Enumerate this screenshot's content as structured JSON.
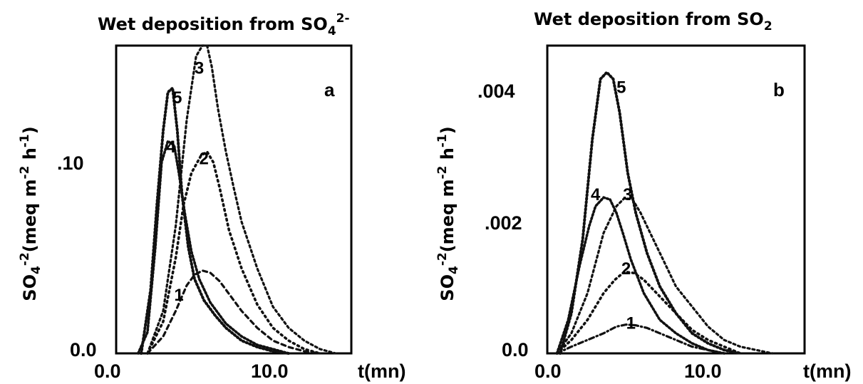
{
  "chart_data": [
    {
      "type": "line",
      "panel_label": "a",
      "title": "Wet deposition from SO",
      "title_sub": "4",
      "title_sup": "2-",
      "xlabel": "t(mn)",
      "ylabel_main": "SO",
      "ylabel_sub": "4",
      "ylabel_sup": "-2",
      "ylabel_unit": "(meq m",
      "ylabel_unit_sup1": "-2",
      "ylabel_unit_mid": " h",
      "ylabel_unit_sup2": "-1",
      "ylabel_unit_end": ")",
      "xlim": [
        0,
        15
      ],
      "ylim": [
        0,
        0.145
      ],
      "xticks": [
        {
          "value": 0,
          "label": "0.0"
        },
        {
          "value": 10,
          "label": "10.0"
        }
      ],
      "yticks": [
        {
          "value": 0,
          "label": "0.0"
        },
        {
          "value": 0.1,
          "label": ".10"
        }
      ],
      "series": [
        {
          "name": "1",
          "x": [
            2.0,
            3.0,
            3.8,
            4.5,
            5.0,
            5.5,
            6.0,
            6.6,
            7.2,
            8.0,
            9.0,
            10.0,
            11.0,
            12.0,
            13.0
          ],
          "y": [
            0.0,
            0.008,
            0.02,
            0.032,
            0.037,
            0.039,
            0.038,
            0.034,
            0.028,
            0.02,
            0.012,
            0.006,
            0.003,
            0.001,
            0.0
          ]
        },
        {
          "name": "2",
          "x": [
            2.0,
            3.0,
            3.8,
            4.3,
            4.8,
            5.4,
            5.8,
            6.2,
            6.6,
            7.2,
            8.0,
            9.0,
            10.0,
            11.0,
            12.0,
            13.0
          ],
          "y": [
            0.0,
            0.015,
            0.045,
            0.07,
            0.085,
            0.093,
            0.095,
            0.09,
            0.078,
            0.058,
            0.04,
            0.023,
            0.012,
            0.006,
            0.002,
            0.0
          ]
        },
        {
          "name": "3",
          "x": [
            2.0,
            3.0,
            3.8,
            4.5,
            5.1,
            5.5,
            5.8,
            6.1,
            6.5,
            7.0,
            7.5,
            8.0,
            9.0,
            10.0,
            11.0,
            12.0,
            13.0,
            14.0
          ],
          "y": [
            0.0,
            0.02,
            0.06,
            0.11,
            0.14,
            0.145,
            0.145,
            0.135,
            0.115,
            0.095,
            0.078,
            0.062,
            0.04,
            0.022,
            0.012,
            0.006,
            0.002,
            0.0
          ]
        },
        {
          "name": "4",
          "x": [
            1.4,
            2.0,
            2.5,
            2.9,
            3.3,
            3.7,
            4.0,
            4.4,
            4.8,
            5.3,
            6.0,
            7.0,
            8.0,
            9.0,
            10.0,
            11.0
          ],
          "y": [
            0.0,
            0.01,
            0.05,
            0.09,
            0.1,
            0.098,
            0.085,
            0.065,
            0.048,
            0.035,
            0.024,
            0.014,
            0.008,
            0.004,
            0.002,
            0.0
          ]
        },
        {
          "name": "5",
          "x": [
            1.6,
            2.2,
            2.6,
            3.0,
            3.3,
            3.6,
            3.9,
            4.2,
            4.6,
            5.0,
            5.6,
            6.3,
            7.0,
            8.0,
            9.0,
            10.0,
            11.0
          ],
          "y": [
            0.0,
            0.03,
            0.07,
            0.105,
            0.123,
            0.125,
            0.105,
            0.075,
            0.05,
            0.035,
            0.025,
            0.018,
            0.012,
            0.006,
            0.003,
            0.001,
            0.0
          ]
        }
      ],
      "curve_labels": [
        {
          "text": "1",
          "x": 4.0,
          "y": 0.0248
        },
        {
          "text": "2",
          "x": 5.6,
          "y": 0.0891
        },
        {
          "text": "3",
          "x": 5.3,
          "y": 0.1318
        },
        {
          "text": "4",
          "x": 3.5,
          "y": 0.0946
        },
        {
          "text": "5",
          "x": 3.9,
          "y": 0.1178
        }
      ]
    },
    {
      "type": "line",
      "panel_label": "b",
      "title": "Wet deposition from SO",
      "title_sub": "2",
      "title_sup": "",
      "xlabel": "t(mn)",
      "ylabel_main": "SO",
      "ylabel_sub": "4",
      "ylabel_sup": "-2",
      "ylabel_unit": "(meq m",
      "ylabel_unit_sup1": "-2",
      "ylabel_unit_mid": " h",
      "ylabel_unit_sup2": "-1",
      "ylabel_unit_end": ")",
      "xlim": [
        0,
        16
      ],
      "ylim": [
        0,
        0.0046
      ],
      "xticks": [
        {
          "value": 0,
          "label": "0.0"
        },
        {
          "value": 10,
          "label": "10.0"
        }
      ],
      "yticks": [
        {
          "value": 0,
          "label": "0.0"
        },
        {
          "value": 0.002,
          "label": ".002"
        },
        {
          "value": 0.004,
          "label": ".004"
        }
      ],
      "series": [
        {
          "name": "1",
          "x": [
            0.6,
            1.5,
            2.5,
            3.5,
            4.3,
            4.9,
            5.5,
            6.2,
            7.0,
            8.0,
            9.0,
            10.0,
            11.0
          ],
          "y": [
            0.0,
            0.0001,
            0.0002,
            0.0003,
            0.0004,
            0.00043,
            0.00042,
            0.00038,
            0.0003,
            0.0002,
            0.0001,
            5e-05,
            0.0
          ],
          "dot_style": "dashdot"
        },
        {
          "name": "2",
          "x": [
            0.6,
            1.5,
            2.5,
            3.5,
            4.2,
            4.8,
            5.4,
            6.0,
            7.0,
            8.0,
            9.0,
            10.0,
            11.0,
            12.0
          ],
          "y": [
            0.0,
            0.0002,
            0.0005,
            0.0009,
            0.0011,
            0.00122,
            0.0012,
            0.0011,
            0.00085,
            0.0006,
            0.00035,
            0.0002,
            0.0001,
            0.0
          ]
        },
        {
          "name": "3",
          "x": [
            0.6,
            1.5,
            2.5,
            3.5,
            4.3,
            4.8,
            5.3,
            5.8,
            6.4,
            7.2,
            8.0,
            9.0,
            10.0,
            11.0,
            12.0,
            13.0,
            14.0
          ],
          "y": [
            0.0,
            0.0003,
            0.0009,
            0.0018,
            0.0022,
            0.00232,
            0.0023,
            0.0021,
            0.0018,
            0.0014,
            0.001,
            0.0007,
            0.0004,
            0.0002,
            0.0001,
            5e-05,
            0.0
          ]
        },
        {
          "name": "4",
          "x": [
            0.6,
            1.3,
            2.0,
            2.6,
            3.0,
            3.5,
            3.9,
            4.3,
            4.7,
            5.2,
            6.0,
            7.0,
            8.0,
            9.0,
            10.0,
            11.0
          ],
          "y": [
            0.0,
            0.0005,
            0.0013,
            0.0019,
            0.0022,
            0.00233,
            0.0023,
            0.0021,
            0.0018,
            0.0014,
            0.0009,
            0.0005,
            0.0003,
            0.00015,
            5e-05,
            0.0
          ]
        },
        {
          "name": "5",
          "x": [
            0.8,
            1.5,
            2.2,
            2.8,
            3.3,
            3.7,
            4.1,
            4.5,
            5.0,
            5.5,
            6.2,
            7.0,
            8.0,
            9.0,
            10.0,
            11.0,
            12.0
          ],
          "y": [
            0.0,
            0.0006,
            0.0017,
            0.0032,
            0.0041,
            0.0042,
            0.0041,
            0.0036,
            0.0027,
            0.0021,
            0.0015,
            0.001,
            0.0006,
            0.0003,
            0.00015,
            5e-05,
            0.0
          ]
        }
      ],
      "curve_labels": [
        {
          "text": "1",
          "x": 5.2,
          "y": 0.00037
        },
        {
          "text": "2",
          "x": 4.9,
          "y": 0.00118
        },
        {
          "text": "3",
          "x": 5.0,
          "y": 0.00229
        },
        {
          "text": "4",
          "x": 3.0,
          "y": 0.00229
        },
        {
          "text": "5",
          "x": 4.6,
          "y": 0.00389
        }
      ]
    }
  ]
}
